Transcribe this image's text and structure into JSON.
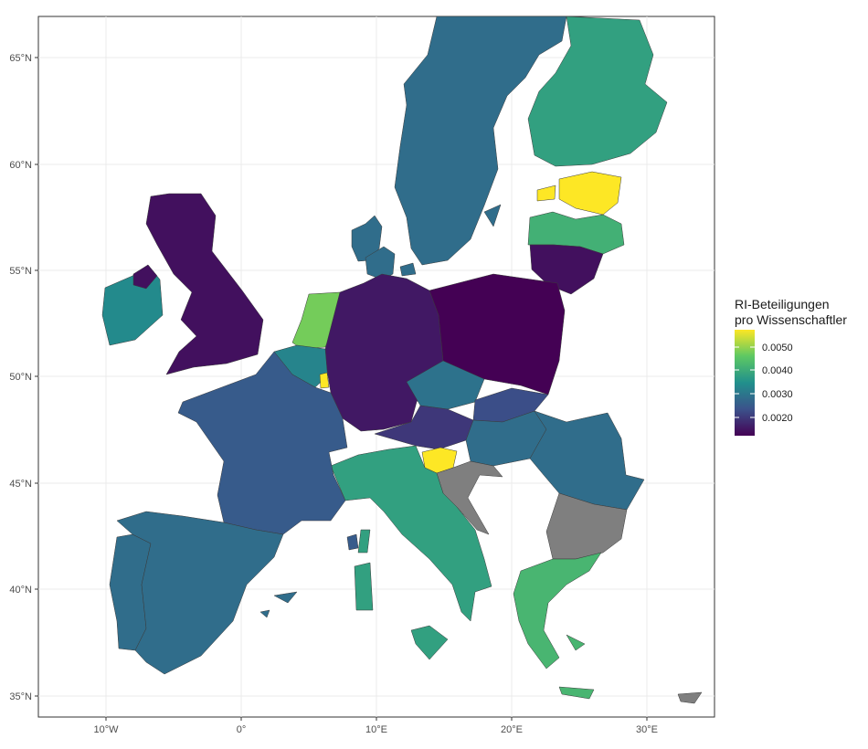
{
  "chart_data": {
    "type": "choropleth",
    "title": "",
    "x_ticks": [
      "10°W",
      "0°",
      "10°E",
      "20°E",
      "30°E"
    ],
    "y_ticks": [
      "35°N",
      "40°N",
      "45°N",
      "50°N",
      "55°N",
      "60°N",
      "65°N"
    ],
    "legend": {
      "title_line1": "RI-Beteiligungen",
      "title_line2": "pro Wissenschaftler",
      "labels": [
        "0.0050",
        "0.0040",
        "0.0030",
        "0.0020"
      ],
      "range": [
        0.0013,
        0.0055
      ],
      "placement": "right"
    },
    "no_data_color": "#7f7f7f",
    "regions": [
      {
        "name": "Sweden",
        "value": 0.0028
      },
      {
        "name": "Norway",
        "value": 0.0028
      },
      {
        "name": "Finland",
        "value": 0.0037
      },
      {
        "name": "Estonia",
        "value": 0.0055
      },
      {
        "name": "Latvia",
        "value": 0.004
      },
      {
        "name": "Lithuania",
        "value": 0.0015
      },
      {
        "name": "Denmark",
        "value": 0.0028
      },
      {
        "name": "United Kingdom",
        "value": 0.0015
      },
      {
        "name": "Ireland",
        "value": 0.0033
      },
      {
        "name": "Netherlands",
        "value": 0.0046
      },
      {
        "name": "Belgium",
        "value": 0.0032
      },
      {
        "name": "Luxembourg",
        "value": 0.0055
      },
      {
        "name": "Germany",
        "value": 0.0016
      },
      {
        "name": "Poland",
        "value": 0.0013
      },
      {
        "name": "Czech Republic",
        "value": 0.0029
      },
      {
        "name": "Slovakia",
        "value": 0.0023
      },
      {
        "name": "Austria",
        "value": 0.002
      },
      {
        "name": "Hungary",
        "value": 0.0028
      },
      {
        "name": "Slovenia",
        "value": 0.0055
      },
      {
        "name": "Croatia",
        "value": null
      },
      {
        "name": "Romania",
        "value": 0.0028
      },
      {
        "name": "Bulgaria",
        "value": null
      },
      {
        "name": "Greece",
        "value": 0.0041
      },
      {
        "name": "Italy",
        "value": 0.0037
      },
      {
        "name": "France",
        "value": 0.0025
      },
      {
        "name": "Spain",
        "value": 0.0028
      },
      {
        "name": "Portugal",
        "value": 0.0028
      },
      {
        "name": "Cyprus",
        "value": null
      }
    ]
  }
}
